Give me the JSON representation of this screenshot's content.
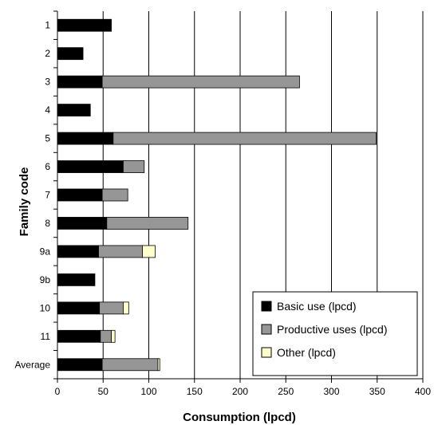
{
  "chart_data": {
    "type": "bar",
    "orientation": "horizontal",
    "stacked": true,
    "categories": [
      "1",
      "2",
      "3",
      "4",
      "5",
      "6",
      "7",
      "8",
      "9a",
      "9b",
      "10",
      "11",
      "Average"
    ],
    "series": [
      {
        "name": "Basic use  (lpcd)",
        "color": "#000000",
        "values": [
          59,
          28,
          49,
          36,
          61,
          72,
          49,
          54,
          45,
          41,
          46,
          47,
          49
        ]
      },
      {
        "name": "Productive uses (lpcd)",
        "color": "#969696",
        "values": [
          0,
          0,
          216,
          0,
          288,
          23,
          28,
          89,
          48,
          0,
          26,
          12,
          61
        ]
      },
      {
        "name": "Other (lpcd)",
        "color": "#ffffcc",
        "values": [
          0,
          0,
          0,
          0,
          0,
          0,
          0,
          0,
          14,
          0,
          6,
          4,
          2
        ]
      }
    ],
    "xlabel": "Consumption (lpcd)",
    "ylabel": "Family code",
    "xlim": [
      0,
      400
    ],
    "xticks": [
      "0",
      "50",
      "100",
      "150",
      "200",
      "250",
      "300",
      "350",
      "400"
    ],
    "grid": "vertical",
    "legend_position": "bottom-right"
  }
}
